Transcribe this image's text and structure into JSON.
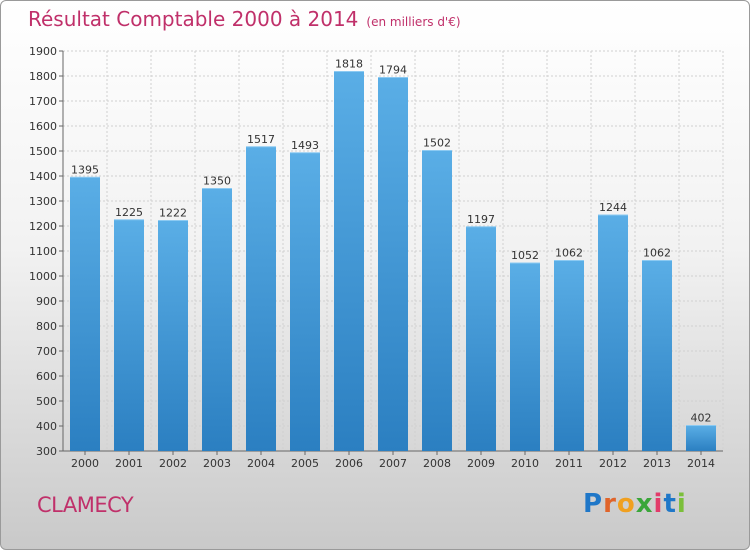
{
  "header": {
    "title": "Résultat Comptable 2000 à 2014",
    "subtitle": "(en milliers d'€)"
  },
  "footer": {
    "commune": "CLAMECY",
    "logo_letters": [
      "P",
      "r",
      "o",
      "x",
      "i",
      "t",
      "i"
    ]
  },
  "colors": {
    "title": "#c0306a",
    "bar_top": "#5aaee6",
    "bar_bottom": "#2b7fc1",
    "grid": "#d0d0d0"
  },
  "chart_data": {
    "type": "bar",
    "title": "Résultat Comptable 2000 à 2014",
    "subtitle": "(en milliers d'€)",
    "xlabel": "",
    "ylabel": "",
    "categories": [
      "2000",
      "2001",
      "2002",
      "2003",
      "2004",
      "2005",
      "2006",
      "2007",
      "2008",
      "2009",
      "2010",
      "2011",
      "2012",
      "2013",
      "2014"
    ],
    "values": [
      1395,
      1225,
      1222,
      1350,
      1517,
      1493,
      1818,
      1794,
      1502,
      1197,
      1052,
      1062,
      1244,
      1062,
      402
    ],
    "ylim": [
      300,
      1900
    ],
    "yticks": [
      300,
      400,
      500,
      600,
      700,
      800,
      900,
      1000,
      1100,
      1200,
      1300,
      1400,
      1500,
      1600,
      1700,
      1800,
      1900
    ],
    "grid": true,
    "legend": "none"
  }
}
